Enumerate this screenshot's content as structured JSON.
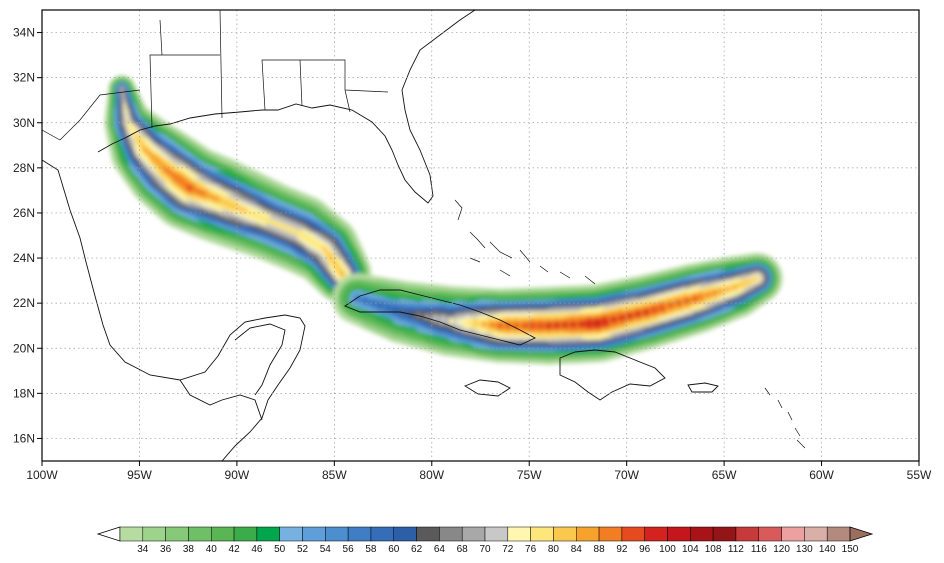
{
  "map": {
    "extent": {
      "lon": [
        -100,
        -55
      ],
      "lat": [
        15,
        35
      ]
    },
    "lon_ticks": [
      {
        "lon": -100,
        "label": "100W"
      },
      {
        "lon": -95,
        "label": "95W"
      },
      {
        "lon": -90,
        "label": "90W"
      },
      {
        "lon": -85,
        "label": "85W"
      },
      {
        "lon": -80,
        "label": "80W"
      },
      {
        "lon": -75,
        "label": "75W"
      },
      {
        "lon": -70,
        "label": "70W"
      },
      {
        "lon": -65,
        "label": "65W"
      },
      {
        "lon": -60,
        "label": "60W"
      },
      {
        "lon": -55,
        "label": "55W"
      }
    ],
    "lat_ticks": [
      {
        "lat": 16,
        "label": "16N"
      },
      {
        "lat": 18,
        "label": "18N"
      },
      {
        "lat": 20,
        "label": "20N"
      },
      {
        "lat": 22,
        "label": "22N"
      },
      {
        "lat": 24,
        "label": "24N"
      },
      {
        "lat": 26,
        "label": "26N"
      },
      {
        "lat": 28,
        "label": "28N"
      },
      {
        "lat": 30,
        "label": "30N"
      },
      {
        "lat": 32,
        "label": "32N"
      },
      {
        "lat": 34,
        "label": "34N"
      }
    ],
    "grid": "dotted",
    "swaths": [
      {
        "name": "",
        "track": [
          [
            -95.9,
            31.5
          ],
          [
            -95.6,
            30.0
          ],
          [
            -94.7,
            28.8
          ],
          [
            -93.6,
            27.9
          ],
          [
            -92.4,
            27.1
          ],
          [
            -91.0,
            26.6
          ],
          [
            -89.6,
            26.1
          ],
          [
            -88.2,
            25.6
          ],
          [
            -86.8,
            25.1
          ],
          [
            -85.5,
            24.4
          ],
          [
            -84.6,
            23.3
          ]
        ],
        "widths_deg": [
          0.7,
          1.2,
          1.8,
          2.1,
          2.2,
          2.2,
          2.1,
          2.0,
          2.0,
          1.8,
          1.5
        ],
        "peaks": [
          72,
          80,
          88,
          92,
          96,
          88,
          84,
          80,
          80,
          84,
          88
        ]
      },
      {
        "name": "",
        "track": [
          [
            -83.8,
            22.2
          ],
          [
            -81.5,
            21.6
          ],
          [
            -79.0,
            21.2
          ],
          [
            -76.5,
            21.0
          ],
          [
            -74.0,
            21.0
          ],
          [
            -71.5,
            21.1
          ],
          [
            -69.0,
            21.6
          ],
          [
            -66.5,
            22.2
          ],
          [
            -64.5,
            22.7
          ],
          [
            -63.3,
            23.1
          ]
        ],
        "widths_deg": [
          1.3,
          1.6,
          1.8,
          1.9,
          2.0,
          2.0,
          1.9,
          1.8,
          1.6,
          1.3
        ],
        "peaks": [
          60,
          64,
          76,
          96,
          100,
          104,
          100,
          96,
          88,
          84
        ]
      }
    ]
  },
  "colorbar": {
    "levels": [
      "34",
      "36",
      "38",
      "40",
      "42",
      "46",
      "50",
      "52",
      "54",
      "56",
      "58",
      "60",
      "62",
      "64",
      "68",
      "70",
      "72",
      "76",
      "80",
      "84",
      "88",
      "92",
      "96",
      "100",
      "104",
      "108",
      "112",
      "116",
      "120",
      "130",
      "140",
      "150"
    ],
    "colors": [
      "#b7dca2",
      "#9ed38c",
      "#86c979",
      "#6fbf66",
      "#5ab655",
      "#3aad4a",
      "#00a64b",
      "#76b1e2",
      "#5f9fd9",
      "#4d8ecf",
      "#3f7dc4",
      "#356db8",
      "#2d5fa8",
      "#5a5a5a",
      "#888888",
      "#a8a8a8",
      "#c8c8c8",
      "#fff7b0",
      "#fde67a",
      "#fbc84e",
      "#f7a32b",
      "#f27d23",
      "#e64a1f",
      "#d4231f",
      "#c4161c",
      "#a71316",
      "#941518",
      "#c73a3a",
      "#d95a5a",
      "#eda0a0",
      "#d8b0a8",
      "#b38a7e"
    ],
    "under_color": "#ffffff",
    "over_color": "#9c6e5e"
  }
}
